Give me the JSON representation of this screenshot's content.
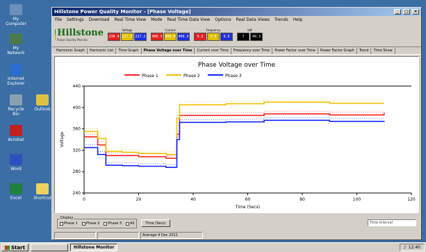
{
  "desktop": {
    "icons": [
      {
        "label": "My Computer",
        "color": "#6b8fb8"
      },
      {
        "label": "My Network",
        "color": "#4a7a4a"
      },
      {
        "label": "Internet Explorer",
        "color": "#2a6fd0"
      },
      {
        "label": "Recycle Bin",
        "color": "#8aa0b0"
      },
      {
        "label": "Outlook",
        "color": "#e0c040"
      },
      {
        "label": "Acrobat",
        "color": "#c02020"
      },
      {
        "label": "Word",
        "color": "#3050c0"
      },
      {
        "label": "Excel",
        "color": "#208040"
      },
      {
        "label": "Shortcut",
        "color": "#f0d060"
      }
    ]
  },
  "taskbar": {
    "start": "Start",
    "buttons": [
      "",
      "Hillstone Monitor"
    ],
    "tray_time": "12:40"
  },
  "window": {
    "title": "Hillstone Power Quality Monitor - [Phase Voltage]",
    "menu": [
      "File",
      "Settings",
      "Download",
      "Real Time View",
      "Mode",
      "Real Time Data View",
      "Options",
      "Real Data Views",
      "Trends",
      "Help"
    ]
  },
  "header": {
    "logo_word": "Hillstone",
    "logo_sub": "Power Quality Monitor",
    "groups": [
      {
        "label": "Voltage",
        "meters": [
          {
            "value": "230.4",
            "color": "#e02020"
          },
          {
            "value": "227.3",
            "color": "#e0c000"
          },
          {
            "value": "227.2",
            "color": "#2030e0"
          }
        ]
      },
      {
        "label": "Current",
        "meters": [
          {
            "value": "400.3",
            "color": "#e02020"
          },
          {
            "value": "400.0",
            "color": "#e0c000"
          },
          {
            "value": "400.5",
            "color": "#2030e0"
          }
        ]
      },
      {
        "label": "Frequency",
        "meters": [
          {
            "value": "9.5",
            "color": "#e02020"
          },
          {
            "value": "9.8",
            "color": "#e0c000"
          },
          {
            "value": "9.6",
            "color": "#2030e0"
          }
        ]
      },
      {
        "label": "kW",
        "meters": [
          {
            "value": "7",
            "color": "#000000"
          },
          {
            "value": "49.3",
            "color": "#000000"
          }
        ]
      }
    ]
  },
  "toolbar": {
    "tabs": [
      "Harmonic Graph",
      "Harmonic List",
      "Time Graph",
      "Phase Voltage over Time",
      "Current over Time",
      "Frequency over Time",
      "Power Factor over Time",
      "Power Factor Graph",
      "Trend",
      "Time Show"
    ]
  },
  "chart_data": {
    "type": "line",
    "title": "Phase Voltage over Time",
    "xlabel": "Time (Secs)",
    "ylabel": "Voltage",
    "xlim": [
      0,
      120
    ],
    "ylim": [
      240,
      440
    ],
    "x_ticks": [
      0,
      20,
      40,
      60,
      80,
      100,
      120
    ],
    "y_ticks": [
      240,
      280,
      320,
      360,
      400,
      440
    ],
    "y_tick_labels": [
      "240",
      "280",
      "320",
      "360",
      "400",
      "440"
    ],
    "grid": false,
    "legend": "top",
    "series": [
      {
        "name": "Phase 1",
        "color": "#ff2020",
        "points": [
          [
            0,
            345
          ],
          [
            5,
            330
          ],
          [
            8,
            310
          ],
          [
            14,
            310
          ],
          [
            20,
            308
          ],
          [
            30,
            305
          ],
          [
            33,
            305
          ],
          [
            34,
            350
          ],
          [
            35,
            385
          ],
          [
            52,
            385
          ],
          [
            66,
            388
          ],
          [
            90,
            386
          ],
          [
            110,
            390
          ]
        ]
      },
      {
        "name": "Phase 2",
        "color": "#f0c000",
        "points": [
          [
            0,
            355
          ],
          [
            5,
            342
          ],
          [
            8,
            318
          ],
          [
            14,
            316
          ],
          [
            20,
            314
          ],
          [
            30,
            312
          ],
          [
            33,
            312
          ],
          [
            34,
            380
          ],
          [
            35,
            405
          ],
          [
            52,
            407
          ],
          [
            66,
            410
          ],
          [
            90,
            408
          ],
          [
            110,
            408
          ]
        ]
      },
      {
        "name": "Phase 3",
        "color": "#1020ff",
        "points": [
          [
            0,
            325
          ],
          [
            5,
            312
          ],
          [
            8,
            292
          ],
          [
            14,
            291
          ],
          [
            20,
            290
          ],
          [
            30,
            288
          ],
          [
            33,
            288
          ],
          [
            34,
            340
          ],
          [
            35,
            372
          ],
          [
            52,
            373
          ],
          [
            66,
            376
          ],
          [
            90,
            374
          ],
          [
            110,
            375
          ]
        ]
      }
    ]
  },
  "bottom": {
    "group_title": "Display",
    "checks": [
      "Phase 1",
      "Phase 2",
      "Phase 3",
      "All"
    ],
    "button": "Time (Secs)",
    "status_field": "Time Interval",
    "statusbar": [
      "",
      "",
      "Average 4 Dec 2011"
    ]
  }
}
